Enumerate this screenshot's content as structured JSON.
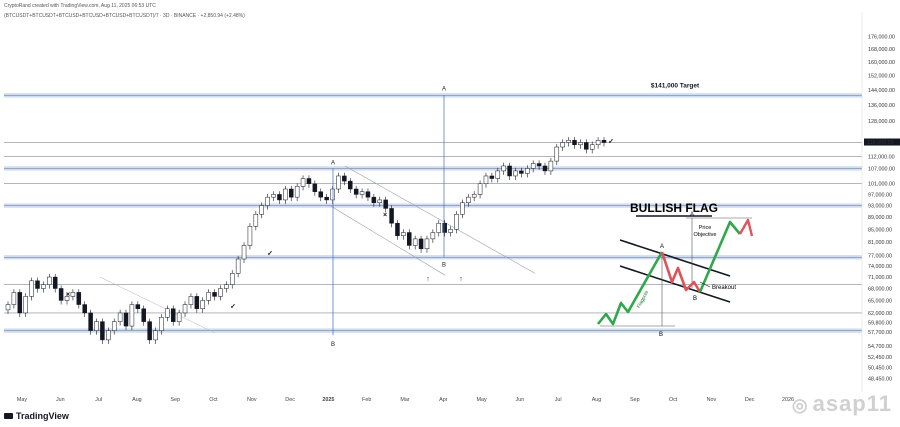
{
  "header": {
    "author_line": "CryptoRand created with TradingView.com, Aug 11, 2025 06:53 UTC",
    "symbol_line": "(BTCUSDT+BTCUSDT+BTCUSD+BTCUSD+BTCUSD+BTCUSDT)/7 · 3D · BINANCE · +2,850.94 (+2.48%)"
  },
  "branding": {
    "logo_text": "TradingView",
    "watermark_text": "asap11"
  },
  "chart_data": {
    "type": "candlestick",
    "title": "",
    "y_axis": {
      "scale": "log",
      "ylim": [
        46000,
        186000
      ],
      "tick_labels": [
        "176,000.00",
        "168,000.00",
        "160,000.00",
        "152,000.00",
        "144,000.00",
        "136,000.00",
        "128,000.00",
        "118,000.00",
        "112,000.00",
        "107,000.00",
        "101,000.00",
        "97,000.00",
        "93,000.00",
        "89,000.00",
        "85,000.00",
        "81,000.00",
        "77,000.00",
        "74,000.00",
        "71,000.00",
        "68,000.00",
        "65,000.00",
        "62,000.00",
        "59,800.00",
        "57,700.00",
        "54,700.00",
        "52,450.00",
        "50,450.00",
        "48,450.00"
      ],
      "current_price_label": "118,000.00"
    },
    "x_axis": {
      "tick_labels": [
        "May",
        "Jun",
        "Jul",
        "Aug",
        "Sep",
        "Oct",
        "Nov",
        "Dec",
        "2025",
        "Feb",
        "Mar",
        "Apr",
        "May",
        "Jun",
        "Jul",
        "Aug",
        "Sep",
        "Oct",
        "Nov",
        "Dec",
        "2026"
      ]
    },
    "series": [
      {
        "values": [
          64000,
          67000,
          62000,
          66000,
          70000,
          68000,
          69000,
          71000,
          68000,
          65000,
          66000,
          67000,
          64000,
          62000,
          58000,
          60000,
          56000,
          58000,
          60000,
          62000,
          59000,
          64000,
          63000,
          60000,
          56000,
          58000,
          61000,
          63000,
          60000,
          62000,
          64000,
          66000,
          63000,
          65000,
          67000,
          66000,
          68000,
          69000,
          72000,
          76000,
          80000,
          86000,
          90000,
          93000,
          96000,
          97000,
          95000,
          99000,
          96000,
          100000,
          103000,
          101000,
          98000,
          96000,
          95000,
          99000,
          104000,
          102000,
          99000,
          97000,
          98000,
          96000,
          94000,
          95000,
          92000,
          87000,
          83000,
          84000,
          80000,
          82000,
          79000,
          82000,
          84000,
          87000,
          84000,
          85000,
          90000,
          94000,
          96000,
          97000,
          101000,
          104000,
          103000,
          106000,
          108000,
          104000,
          106000,
          105000,
          107000,
          109000,
          108000,
          106000,
          110000,
          116000,
          118000,
          119000,
          117000,
          118000,
          115000,
          117000,
          119000,
          118000
        ]
      }
    ],
    "levels": [
      141000,
      118000,
      112000,
      107000,
      101000,
      93000,
      76500,
      69000,
      62000,
      58000
    ],
    "pattern_label": "BULLISH FLAG",
    "annotations": [
      "$141,000 Target",
      "A",
      "B",
      "A",
      "B",
      "Price Objective",
      "Breakout",
      "Flagpole"
    ]
  }
}
